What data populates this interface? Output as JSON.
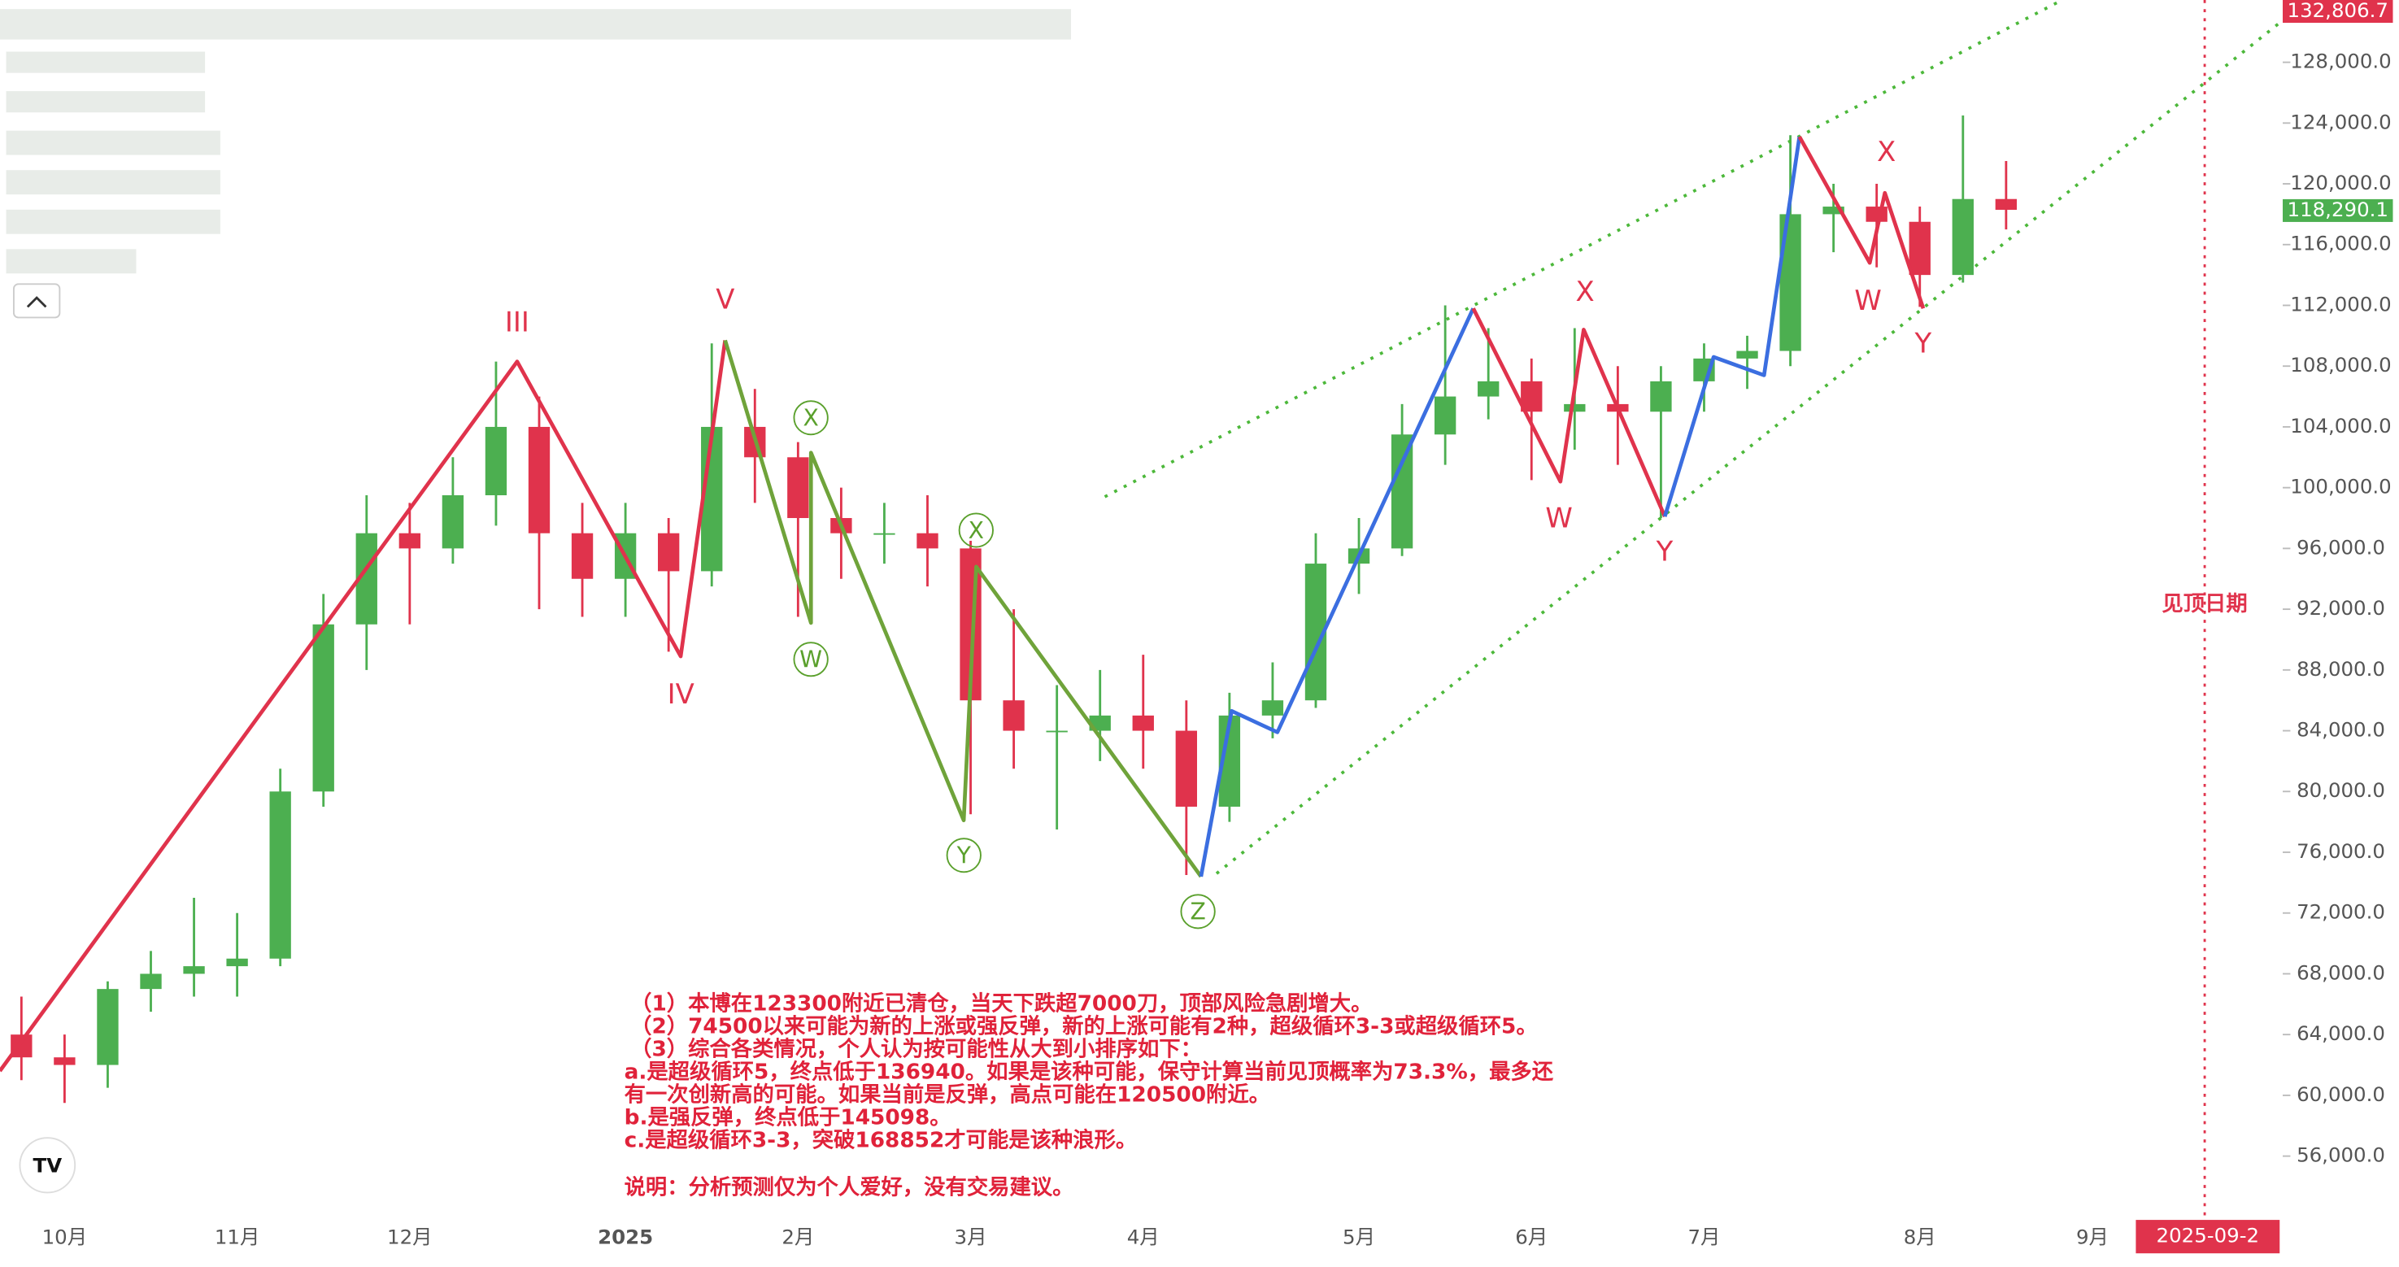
{
  "chart_data": {
    "type": "candlestick",
    "categories": [
      null,
      "10月",
      null,
      null,
      null,
      "11月",
      null,
      null,
      null,
      "12月",
      null,
      null,
      null,
      null,
      "2025",
      null,
      null,
      null,
      "2月",
      null,
      null,
      null,
      "3月",
      null,
      null,
      null,
      "4月",
      null,
      null,
      null,
      null,
      "5月",
      null,
      null,
      null,
      "6月",
      null,
      null,
      null,
      "7月",
      null,
      null,
      null,
      null,
      "8月",
      null,
      null,
      null,
      "9月"
    ],
    "open": [
      64000,
      62500,
      62000,
      67000,
      68000,
      68500,
      69000,
      80000,
      91000,
      97000,
      96000,
      99500,
      104000,
      97000,
      94000,
      97000,
      94500,
      104000,
      102000,
      98000,
      97000,
      97000,
      96000,
      86000,
      84000,
      84000,
      85000,
      84000,
      79000,
      85000,
      86000,
      95000,
      96000,
      103500,
      106000,
      107000,
      105000,
      105500,
      105000,
      107000,
      108500,
      109000,
      118000,
      118500,
      117500,
      114000,
      119000,
      null,
      null
    ],
    "high": [
      66500,
      64000,
      67500,
      69500,
      73000,
      72000,
      81500,
      93000,
      99500,
      99000,
      102000,
      108300,
      106000,
      99000,
      99000,
      98000,
      109500,
      106500,
      103000,
      100000,
      99000,
      99500,
      96500,
      92000,
      87000,
      88000,
      89000,
      86000,
      86500,
      88500,
      97000,
      98000,
      105500,
      112000,
      110500,
      108500,
      110500,
      108000,
      108000,
      109500,
      110000,
      123200,
      120000,
      120000,
      118500,
      124500,
      121500,
      null,
      null
    ],
    "low": [
      61000,
      59500,
      60500,
      65500,
      66500,
      66500,
      68500,
      79000,
      88000,
      91000,
      95000,
      97500,
      92000,
      91500,
      91500,
      89200,
      93500,
      99000,
      91500,
      94000,
      95000,
      93500,
      78500,
      81500,
      77500,
      82000,
      81500,
      74500,
      78000,
      83500,
      85500,
      93000,
      95500,
      101500,
      104500,
      100500,
      102500,
      101500,
      98000,
      105000,
      106500,
      108000,
      115500,
      114500,
      111900,
      113500,
      117000,
      null,
      null
    ],
    "close": [
      62500,
      62000,
      67000,
      68000,
      68500,
      69000,
      80000,
      91000,
      97000,
      96000,
      99500,
      104000,
      97000,
      94000,
      97000,
      94500,
      104000,
      102000,
      98000,
      97000,
      97000,
      96000,
      86000,
      84000,
      84000,
      85000,
      84000,
      79000,
      85000,
      86000,
      95000,
      96000,
      103500,
      106000,
      107000,
      105000,
      105500,
      105000,
      107000,
      108500,
      109000,
      118000,
      118500,
      117500,
      114000,
      119000,
      118290.1,
      null,
      null
    ],
    "up_color": "#4caf50",
    "down_color": "#e0334c",
    "ylim": [
      52100,
      132100
    ],
    "yticks": [
      {
        "value": 56000,
        "label": "56,000.0"
      },
      {
        "value": 60000,
        "label": "60,000.0"
      },
      {
        "value": 64000,
        "label": "64,000.0"
      },
      {
        "value": 68000,
        "label": "68,000.0"
      },
      {
        "value": 72000,
        "label": "72,000.0"
      },
      {
        "value": 76000,
        "label": "76,000.0"
      },
      {
        "value": 80000,
        "label": "80,000.0"
      },
      {
        "value": 84000,
        "label": "84,000.0"
      },
      {
        "value": 88000,
        "label": "88,000.0"
      },
      {
        "value": 92000,
        "label": "92,000.0"
      },
      {
        "value": 96000,
        "label": "96,000.0"
      },
      {
        "value": 100000,
        "label": "100,000.0"
      },
      {
        "value": 104000,
        "label": "104,000.0"
      },
      {
        "value": 108000,
        "label": "108,000.0"
      },
      {
        "value": 112000,
        "label": "112,000.0"
      },
      {
        "value": 116000,
        "label": "116,000.0"
      },
      {
        "value": 120000,
        "label": "120,000.0"
      },
      {
        "value": 124000,
        "label": "124,000.0"
      },
      {
        "value": 128000,
        "label": "128,000.0"
      }
    ],
    "price_tags": [
      {
        "value": 132806.7,
        "label": "132,806.7",
        "color": "#e0334c"
      },
      {
        "value": 118290.1,
        "label": "118,290.1",
        "color": "#4caf50"
      }
    ],
    "waves": [
      {
        "color": "#e0334c",
        "x": [
          -0.5,
          11.49,
          15.28,
          16.31
        ],
        "values": [
          61600,
          108300,
          88900,
          109700
        ]
      },
      {
        "color": "#6fa33a",
        "x": [
          16.31,
          18.3,
          18.3,
          21.84,
          22.13,
          27.34
        ],
        "values": [
          109700,
          91100,
          102300,
          78100,
          94800,
          74400
        ]
      },
      {
        "color": "#3b6ee0",
        "x": [
          27.34,
          28.05,
          29.11,
          33.65
        ],
        "values": [
          74400,
          85300,
          83900,
          111800
        ]
      },
      {
        "color": "#e0334c",
        "x": [
          33.65,
          35.67,
          36.21,
          38.09
        ],
        "values": [
          111800,
          100400,
          110400,
          98100
        ]
      },
      {
        "color": "#3b6ee0",
        "x": [
          38.09,
          39.22,
          40.39,
          41.21
        ],
        "values": [
          98100,
          108600,
          107400,
          123100
        ]
      },
      {
        "color": "#e0334c",
        "x": [
          41.21,
          42.84,
          43.19,
          44.08
        ],
        "values": [
          123100,
          114800,
          119400,
          111800
        ]
      }
    ],
    "channel": {
      "color": "#4cb83a",
      "lines": [
        {
          "x": [
            25.11,
            47.3
          ],
          "values": [
            99400,
            132100
          ]
        },
        {
          "x": [
            27.7,
            52.34
          ],
          "values": [
            74600,
            130600
          ]
        }
      ]
    },
    "wave_labels": [
      "III",
      "IV",
      "V",
      "X",
      "W",
      "X",
      "Y",
      "Z",
      "W",
      "X",
      "Y",
      "X",
      "W",
      "Y"
    ],
    "top_date": {
      "label": "见顶日期",
      "tag": "2025-09-2"
    },
    "notes": [
      "（1）本博在123300附近已清仓，当天下跌超7000刀，顶部风险急剧增大。",
      "（2）74500以来可能为新的上涨或强反弹，新的上涨可能有2种，超级循环3-3或超级循环5。",
      "（3）综合各类情况，个人认为按可能性从大到小排序如下：",
      "a.是超级循环5，终点低于136940。如果是该种可能，保守计算当前见顶概率为73.3%，最多还",
      "有一次创新高的可能。如果当前是反弹，高点可能在120500附近。",
      "b.是强反弹，终点低于145098。",
      "c.是超级循环3-3，突破168852才可能是该种浪形。",
      "说明：分析预测仅为个人爱好，没有交易建议。"
    ]
  }
}
